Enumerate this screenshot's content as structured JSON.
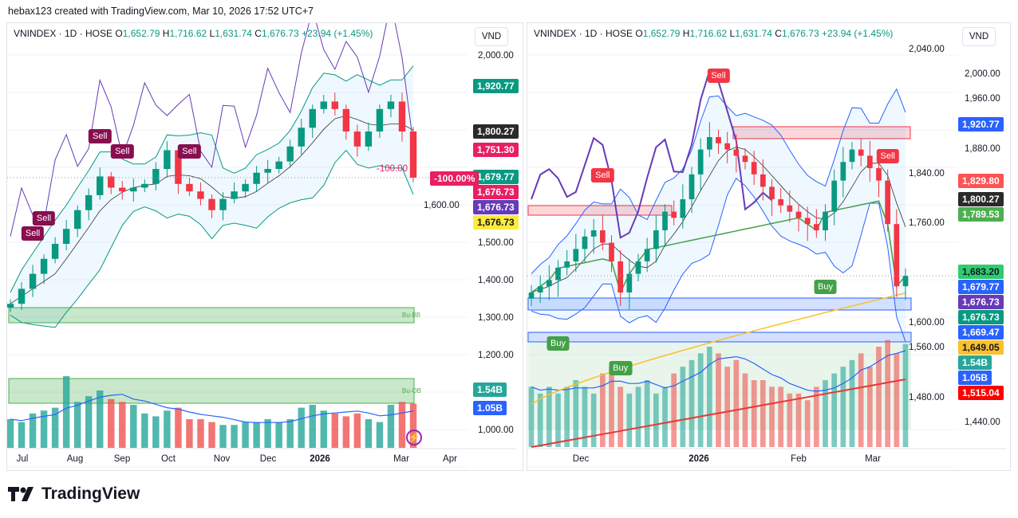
{
  "credit": "hebax123 created with TradingView.com, Mar 10, 2026 17:52 UTC+7",
  "brand": "TradingView",
  "legend": {
    "symbol": "VNINDEX · 1D · HOSE",
    "o_label": "O",
    "o": "1,652.79",
    "h_label": "H",
    "h": "1,716.62",
    "l_label": "L",
    "l": "1,631.74",
    "c_label": "C",
    "c": "1,676.73",
    "change": "+23.94 (+1.45%)"
  },
  "currency": "VND",
  "colors": {
    "up": "#089981",
    "down": "#f23645",
    "bb": "#2962ff",
    "vol_up": "#26a69a",
    "vol_down": "#ef5350",
    "ma200": "#fbc02d",
    "purple": "#673ab7",
    "sell": "#880e4f"
  },
  "left": {
    "price_ticks": [
      "2,000.00",
      "1,600.00",
      "1,500.00",
      "1,400.00",
      "1,300.00",
      "1,200.00",
      "1,000.00"
    ],
    "date_ticks": [
      "Jul",
      "Aug",
      "Sep",
      "Oct",
      "Nov",
      "Dec",
      "2026",
      "Mar",
      "Apr"
    ],
    "tags": [
      {
        "v": "1,920.77",
        "p": 1920.77,
        "bg": "#089981",
        "fg": "#fff"
      },
      {
        "v": "1,800.27",
        "p": 1800.27,
        "bg": "#2a2a2a",
        "fg": "#fff"
      },
      {
        "v": "1,751.30",
        "p": 1751.3,
        "bg": "#e91e63",
        "fg": "#fff"
      },
      {
        "v": "1,679.77",
        "p": 1679.77,
        "bg": "#089981",
        "fg": "#fff"
      },
      {
        "v": "1,676.73",
        "p": 1676.73,
        "bg": "#e91e63",
        "fg": "#fff"
      },
      {
        "v": "1,676.73",
        "p": 1676.73,
        "bg": "#673ab7",
        "fg": "#fff"
      },
      {
        "v": "1,676.73",
        "p": 1676.73,
        "bg": "#ffeb3b",
        "fg": "#131722"
      }
    ],
    "vol_tags": [
      {
        "v": "1.54B",
        "bg": "#26a69a"
      },
      {
        "v": "1.05B",
        "bg": "#2962ff"
      }
    ],
    "pct_label": "-100.00%",
    "pct_text": "-100.00",
    "zones": [
      "Bu-BB",
      "Bu-OB"
    ],
    "markers": [
      {
        "label": "Sell",
        "i": 2
      },
      {
        "label": "Sell",
        "i": 3
      },
      {
        "label": "Sell",
        "i": 8
      },
      {
        "label": "Sell",
        "i": 10
      },
      {
        "label": "Sell",
        "i": 16
      }
    ],
    "closes": [
      1340,
      1380,
      1420,
      1460,
      1500,
      1540,
      1590,
      1630,
      1680,
      1650,
      1640,
      1650,
      1660,
      1700,
      1750,
      1660,
      1640,
      1620,
      1590,
      1620,
      1640,
      1660,
      1690,
      1700,
      1720,
      1760,
      1810,
      1860,
      1880,
      1860,
      1800,
      1760,
      1800,
      1860,
      1880,
      1800,
      1676.73
    ],
    "volumes": [
      1.0,
      0.9,
      1.2,
      1.3,
      1.4,
      2.5,
      1.6,
      1.8,
      2.0,
      1.7,
      1.6,
      1.5,
      1.2,
      1.1,
      1.3,
      1.4,
      1.0,
      1.0,
      0.9,
      0.8,
      0.8,
      0.9,
      0.9,
      1.0,
      0.9,
      1.0,
      1.4,
      1.5,
      1.3,
      1.2,
      1.1,
      1.2,
      1.0,
      0.9,
      1.5,
      1.6,
      1.54
    ]
  },
  "right": {
    "price_ticks": [
      "2,040.00",
      "2,000.00",
      "1,960.00",
      "1,880.00",
      "1,840.00",
      "1,760.00",
      "1,600.00",
      "1,560.00",
      "1,480.00",
      "1,440.00"
    ],
    "tick_values": [
      2040,
      2000,
      1960,
      1880,
      1840,
      1760,
      1600,
      1560,
      1480,
      1440
    ],
    "date_ticks": [
      "Dec",
      "2026",
      "Feb",
      "Mar"
    ],
    "tags": [
      {
        "v": "1,920.77",
        "p": 1920.77,
        "bg": "#2962ff",
        "fg": "#fff"
      },
      {
        "v": "1,829.80",
        "p": 1829.8,
        "bg": "#ff5252",
        "fg": "#fff"
      },
      {
        "v": "1,800.27",
        "p": 1800.27,
        "bg": "#2a2a2a",
        "fg": "#fff"
      },
      {
        "v": "1,789.53",
        "p": 1789.53,
        "bg": "#4caf50",
        "fg": "#fff"
      },
      {
        "v": "1,683.20",
        "p": 1683.2,
        "bg": "#2ecc71",
        "fg": "#131722"
      },
      {
        "v": "1,679.77",
        "p": 1679.77,
        "bg": "#2962ff",
        "fg": "#fff"
      },
      {
        "v": "1,676.73",
        "p": 1676.73,
        "bg": "#673ab7",
        "fg": "#fff"
      },
      {
        "v": "1,676.73",
        "p": 1676.73,
        "bg": "#089981",
        "fg": "#fff"
      },
      {
        "v": "1,669.47",
        "p": 1669.47,
        "bg": "#2962ff",
        "fg": "#fff"
      },
      {
        "v": "1,649.05",
        "p": 1649.05,
        "bg": "#fbc02d",
        "fg": "#131722"
      }
    ],
    "vol_tags": [
      {
        "v": "1.54B",
        "bg": "#26a69a"
      },
      {
        "v": "1.05B",
        "bg": "#2962ff"
      },
      {
        "v": "1,515.04",
        "bg": "#ff0000"
      }
    ],
    "markers": [
      {
        "label": "Sell",
        "i": 8,
        "type": "sell"
      },
      {
        "label": "Sell",
        "i": 21,
        "type": "sell"
      },
      {
        "label": "Sell",
        "i": 40,
        "type": "sell"
      },
      {
        "label": "Buy",
        "i": 3,
        "type": "buy"
      },
      {
        "label": "Buy",
        "i": 10,
        "type": "buy"
      },
      {
        "label": "Buy",
        "i": 33,
        "type": "buy"
      }
    ],
    "closes": [
      1650,
      1660,
      1670,
      1690,
      1700,
      1720,
      1740,
      1750,
      1730,
      1700,
      1650,
      1680,
      1700,
      1720,
      1750,
      1780,
      1770,
      1800,
      1840,
      1880,
      1900,
      1890,
      1880,
      1870,
      1860,
      1840,
      1820,
      1800,
      1790,
      1780,
      1770,
      1760,
      1750,
      1780,
      1830,
      1860,
      1880,
      1870,
      1850,
      1830,
      1760,
      1660,
      1676.73
    ],
    "volumes": [
      0.9,
      0.8,
      0.9,
      0.8,
      0.9,
      1.0,
      0.9,
      0.8,
      1.1,
      1.2,
      0.9,
      0.8,
      0.9,
      1.0,
      0.8,
      0.9,
      1.1,
      1.2,
      1.3,
      1.4,
      1.5,
      1.4,
      1.2,
      1.3,
      1.1,
      1.0,
      1.0,
      0.9,
      0.9,
      0.8,
      0.8,
      0.7,
      0.9,
      1.0,
      1.1,
      1.2,
      1.3,
      1.4,
      1.2,
      1.5,
      1.6,
      1.4,
      1.54
    ],
    "ma200": [
      1470,
      1649.05
    ],
    "red_line": [
      1440,
      1515.04
    ]
  }
}
